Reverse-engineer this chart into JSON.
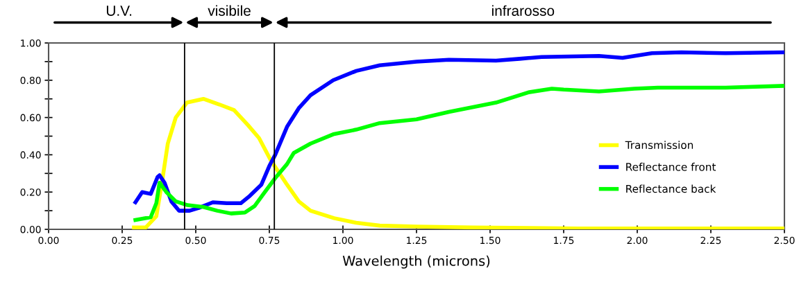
{
  "chart_data": {
    "type": "line",
    "xlabel": "Wavelength (microns)",
    "xlim": [
      0,
      2.5
    ],
    "ylim": [
      0,
      1
    ],
    "xticks": [
      {
        "value": 0,
        "label": "0.00"
      },
      {
        "value": 0.25,
        "label": "0.25"
      },
      {
        "value": 0.5,
        "label": "0.50"
      },
      {
        "value": 0.75,
        "label": "0.75"
      },
      {
        "value": 1,
        "label": "1.00"
      },
      {
        "value": 1.25,
        "label": "1.25"
      },
      {
        "value": 1.5,
        "label": "1.50"
      },
      {
        "value": 1.75,
        "label": "1.75"
      },
      {
        "value": 2,
        "label": "2.00"
      },
      {
        "value": 2.25,
        "label": "2.25"
      },
      {
        "value": 2.5,
        "label": "2.50"
      }
    ],
    "yticks": [
      {
        "value": 0,
        "label": "0.00"
      },
      {
        "value": 0.1,
        "label": null
      },
      {
        "value": 0.2,
        "label": "0.20"
      },
      {
        "value": 0.3,
        "label": null
      },
      {
        "value": 0.4,
        "label": "0.40"
      },
      {
        "value": 0.5,
        "label": null
      },
      {
        "value": 0.6,
        "label": "0.60"
      },
      {
        "value": 0.7,
        "label": null
      },
      {
        "value": 0.8,
        "label": "0.80"
      },
      {
        "value": 0.9,
        "label": null
      },
      {
        "value": 1,
        "label": "1.00"
      }
    ],
    "grid": false,
    "legend": "right",
    "marker": "none",
    "line_style": "solid",
    "series": [
      {
        "name": "Transmission",
        "color": "#ffff00",
        "x": [
          0.29,
          0.33,
          0.366,
          0.385,
          0.405,
          0.432,
          0.47,
          0.526,
          0.58,
          0.63,
          0.677,
          0.715,
          0.755,
          0.81,
          0.85,
          0.89,
          0.97,
          1.045,
          1.125,
          1.25,
          1.44,
          1.8,
          2.5
        ],
        "values": [
          0.01,
          0.01,
          0.07,
          0.25,
          0.46,
          0.6,
          0.68,
          0.7,
          0.67,
          0.64,
          0.56,
          0.49,
          0.37,
          0.24,
          0.15,
          0.1,
          0.06,
          0.035,
          0.02,
          0.015,
          0.01,
          0.005,
          0.005
        ]
      },
      {
        "name": "Reflectance front",
        "color": "#0000ff",
        "x": [
          0.295,
          0.318,
          0.347,
          0.37,
          0.377,
          0.394,
          0.417,
          0.443,
          0.479,
          0.51,
          0.558,
          0.605,
          0.653,
          0.684,
          0.723,
          0.75,
          0.77,
          0.81,
          0.85,
          0.89,
          0.967,
          1.045,
          1.125,
          1.25,
          1.36,
          1.52,
          1.6,
          1.675,
          1.87,
          1.95,
          2.05,
          2.15,
          2.3,
          2.5
        ],
        "values": [
          0.145,
          0.2,
          0.19,
          0.28,
          0.29,
          0.25,
          0.15,
          0.1,
          0.1,
          0.115,
          0.145,
          0.14,
          0.14,
          0.18,
          0.24,
          0.34,
          0.4,
          0.55,
          0.65,
          0.72,
          0.8,
          0.85,
          0.88,
          0.9,
          0.91,
          0.905,
          0.915,
          0.925,
          0.93,
          0.92,
          0.945,
          0.95,
          0.945,
          0.95
        ]
      },
      {
        "name": "Reflectance back",
        "color": "#00ff00",
        "x": [
          0.295,
          0.347,
          0.366,
          0.377,
          0.4,
          0.432,
          0.472,
          0.526,
          0.573,
          0.62,
          0.667,
          0.7,
          0.73,
          0.77,
          0.81,
          0.833,
          0.89,
          0.967,
          1.045,
          1.125,
          1.25,
          1.36,
          1.52,
          1.63,
          1.71,
          1.75,
          1.87,
          1.99,
          2.07,
          2.3,
          2.5
        ],
        "values": [
          0.05,
          0.065,
          0.14,
          0.25,
          0.2,
          0.15,
          0.13,
          0.12,
          0.1,
          0.085,
          0.09,
          0.125,
          0.19,
          0.275,
          0.35,
          0.41,
          0.46,
          0.51,
          0.535,
          0.57,
          0.59,
          0.63,
          0.68,
          0.735,
          0.755,
          0.75,
          0.74,
          0.755,
          0.76,
          0.76,
          0.77
        ]
      }
    ],
    "ref_lines": [
      {
        "axis": "x",
        "value": 0.462,
        "color": "#000000"
      },
      {
        "axis": "x",
        "value": 0.767,
        "color": "#000000"
      }
    ],
    "annotations": [
      "U.V.",
      "visibile",
      "infrarosso"
    ]
  }
}
